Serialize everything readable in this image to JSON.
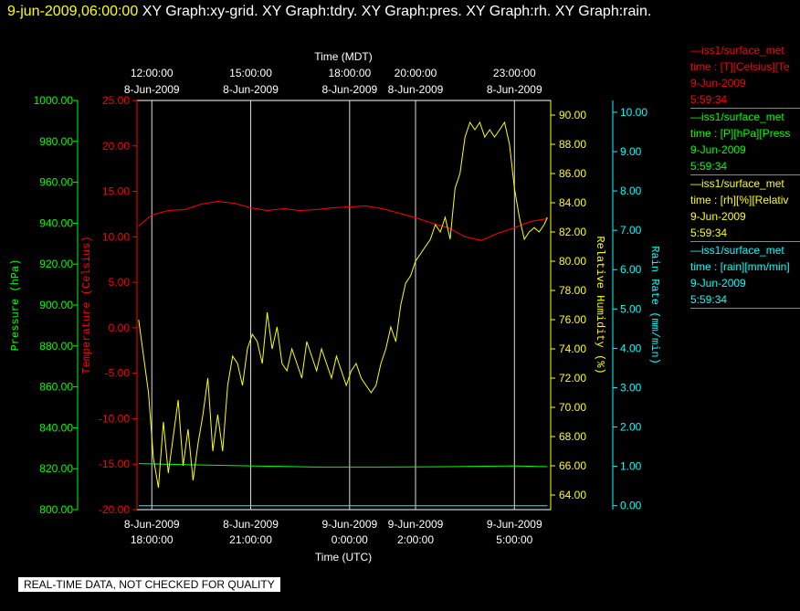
{
  "header": {
    "date_time": "9-jun-2009,06:00:00",
    "graphs": "XY Graph:xy-grid.  XY Graph:tdry.  XY Graph:pres.  XY Graph:rh.  XY Graph:rain."
  },
  "chart_data": {
    "type": "line",
    "top_axis": {
      "label": "Time (MDT)",
      "ticks": [
        {
          "time": "12:00:00",
          "date": "8-Jun-2009"
        },
        {
          "time": "15:00:00",
          "date": "8-Jun-2009"
        },
        {
          "time": "18:00:00",
          "date": "8-Jun-2009"
        },
        {
          "time": "20:00:00",
          "date": "8-Jun-2009"
        },
        {
          "time": "23:00:00",
          "date": "8-Jun-2009"
        }
      ]
    },
    "bottom_axis": {
      "label": "Time (UTC)",
      "ticks": [
        {
          "date": "8-Jun-2009",
          "time": "18:00:00",
          "utc_hours": 18
        },
        {
          "date": "8-Jun-2009",
          "time": "21:00:00",
          "utc_hours": 21
        },
        {
          "date": "9-Jun-2009",
          "time": "0:00:00",
          "utc_hours": 24
        },
        {
          "date": "9-Jun-2009",
          "time": "2:00:00",
          "utc_hours": 26
        },
        {
          "date": "9-Jun-2009",
          "time": "5:00:00",
          "utc_hours": 29
        }
      ],
      "range_utc_hours": [
        17.55,
        30.1
      ]
    },
    "axes": {
      "pressure": {
        "label": "Pressure (hPa)",
        "color": "#00ff00",
        "ylim": [
          800,
          1000
        ],
        "ticks": [
          "1000.00",
          "980.00",
          "960.00",
          "940.00",
          "920.00",
          "900.00",
          "880.00",
          "860.00",
          "840.00",
          "820.00",
          "800.00"
        ]
      },
      "temperature": {
        "label": "Temperature (Celsius)",
        "color": "#ff0000",
        "ylim": [
          -20,
          25
        ],
        "ticks": [
          "25.00",
          "20.00",
          "15.00",
          "10.00",
          "5.00",
          "0.00",
          "-5.00",
          "-10.00",
          "-15.00",
          "-20.00"
        ]
      },
      "humidity": {
        "label": "Relative Humidity (%)",
        "color": "#ffff00",
        "ylim": [
          63,
          91
        ],
        "ticks": [
          "90.00",
          "88.00",
          "86.00",
          "84.00",
          "82.00",
          "80.00",
          "78.00",
          "76.00",
          "74.00",
          "72.00",
          "70.00",
          "68.00",
          "66.00",
          "64.00"
        ]
      },
      "rain": {
        "label": "Rain Rate (mm/min)",
        "color": "#00ffff",
        "ylim": [
          -0.1,
          10.3
        ],
        "ticks": [
          "10.00",
          "9.00",
          "8.00",
          "7.00",
          "6.00",
          "5.00",
          "4.00",
          "3.00",
          "2.00",
          "1.00",
          "0.00"
        ]
      }
    },
    "series": [
      {
        "name": "temperature",
        "axis": "temperature",
        "color": "#ff0000",
        "x": [
          17.6,
          18.0,
          18.5,
          19.0,
          19.5,
          20.0,
          20.5,
          21.0,
          21.5,
          22.0,
          22.5,
          23.0,
          23.5,
          24.0,
          24.5,
          25.0,
          25.5,
          26.0,
          26.5,
          27.0,
          27.5,
          28.0,
          28.5,
          29.0,
          29.5,
          30.0
        ],
        "y": [
          11.2,
          12.4,
          12.9,
          13.0,
          13.6,
          13.9,
          13.7,
          13.2,
          12.9,
          13.1,
          12.9,
          13.0,
          13.2,
          13.3,
          13.4,
          13.1,
          12.6,
          12.1,
          11.5,
          11.0,
          10.0,
          9.6,
          10.4,
          11.0,
          11.7,
          12.0
        ]
      },
      {
        "name": "pressure",
        "axis": "pressure",
        "color": "#00ff00",
        "x": [
          17.6,
          19.0,
          21.0,
          23.0,
          25.0,
          27.0,
          29.0,
          30.0
        ],
        "y": [
          822.5,
          822.0,
          821.4,
          820.8,
          820.8,
          821.0,
          821.4,
          821.0
        ]
      },
      {
        "name": "rh",
        "axis": "humidity",
        "color": "#ffff00",
        "x": [
          17.6,
          17.75,
          17.9,
          18.05,
          18.2,
          18.35,
          18.5,
          18.65,
          18.8,
          18.95,
          19.1,
          19.25,
          19.4,
          19.55,
          19.7,
          19.85,
          20.0,
          20.15,
          20.3,
          20.45,
          20.6,
          20.75,
          20.9,
          21.05,
          21.2,
          21.35,
          21.5,
          21.65,
          21.8,
          21.95,
          22.1,
          22.25,
          22.4,
          22.55,
          22.7,
          22.85,
          23.0,
          23.15,
          23.3,
          23.45,
          23.6,
          23.75,
          23.9,
          24.05,
          24.2,
          24.35,
          24.5,
          24.65,
          24.8,
          24.95,
          25.1,
          25.25,
          25.4,
          25.55,
          25.7,
          25.85,
          26.0,
          26.15,
          26.3,
          26.45,
          26.6,
          26.75,
          26.9,
          27.05,
          27.2,
          27.35,
          27.5,
          27.65,
          27.8,
          27.95,
          28.1,
          28.25,
          28.4,
          28.55,
          28.7,
          28.85,
          29.0,
          29.15,
          29.3,
          29.45,
          29.6,
          29.75,
          29.9,
          30.0
        ],
        "y": [
          76.0,
          73.5,
          71.0,
          66.5,
          64.5,
          69.0,
          65.5,
          68.0,
          70.5,
          66.0,
          68.5,
          65.0,
          67.5,
          69.5,
          72.0,
          67.0,
          69.5,
          67.0,
          71.5,
          73.5,
          73.0,
          71.5,
          74.0,
          75.0,
          74.5,
          73.0,
          76.5,
          74.0,
          75.5,
          73.0,
          72.5,
          74.0,
          73.0,
          72.0,
          74.5,
          73.5,
          72.5,
          74.0,
          73.0,
          72.0,
          73.5,
          72.5,
          71.5,
          72.5,
          73.0,
          72.0,
          71.5,
          71.0,
          71.5,
          73.0,
          74.0,
          75.5,
          74.5,
          77.0,
          78.5,
          79.0,
          80.0,
          80.5,
          81.0,
          81.5,
          82.5,
          82.0,
          83.0,
          81.5,
          85.0,
          86.0,
          88.5,
          89.5,
          89.0,
          89.5,
          88.5,
          89.0,
          88.5,
          89.0,
          89.5,
          88.0,
          85.0,
          83.0,
          81.5,
          82.0,
          82.3,
          82.0,
          82.5,
          83.0
        ]
      },
      {
        "name": "rain",
        "axis": "rain",
        "color": "#00ffff",
        "x": [
          17.6,
          30.0
        ],
        "y": [
          0.0,
          0.0
        ]
      }
    ],
    "legend": [
      {
        "name": "—iss1/surface_met",
        "var": "time : [T][Celsius][Te",
        "date": "9-Jun-2009",
        "time": "5:59:34",
        "color": "#ff0000"
      },
      {
        "name": "—iss1/surface_met",
        "var": "time : [P][hPa][Press",
        "date": "9-Jun-2009",
        "time": "5:59:34",
        "color": "#00ff00"
      },
      {
        "name": "—iss1/surface_met",
        "var": "time : [rh][%][Relativ",
        "date": "9-Jun-2009",
        "time": "5:59:34",
        "color": "#ffff00"
      },
      {
        "name": "—iss1/surface_met",
        "var": "time : [rain][mm/min]",
        "date": "9-Jun-2009",
        "time": "5:59:34",
        "color": "#00ffff"
      }
    ],
    "grid": "vertical lines at time ticks"
  },
  "footer": {
    "notice": "REAL-TIME DATA, NOT CHECKED FOR QUALITY"
  }
}
